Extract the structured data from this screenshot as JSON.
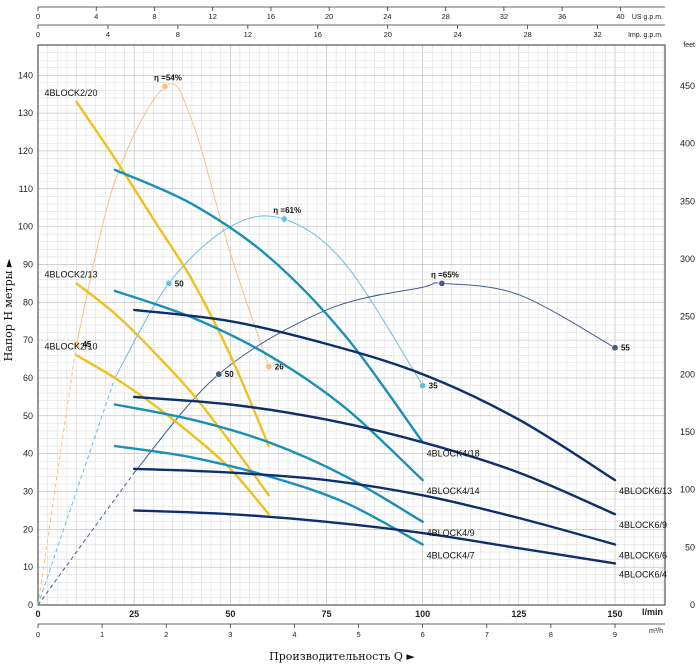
{
  "chart_data": {
    "type": "line",
    "xlabel": "Производительность Q ►",
    "ylabel": "Напор H метры ►",
    "x_unit": "l/min",
    "xlim": [
      0,
      163
    ],
    "ylim": [
      0,
      148
    ],
    "x_ticks": [
      0,
      25,
      50,
      75,
      100,
      125,
      150
    ],
    "y_ticks": [
      0,
      10,
      20,
      30,
      40,
      50,
      60,
      70,
      80,
      90,
      100,
      110,
      120,
      130,
      140
    ],
    "grid": true,
    "secondary_axes": {
      "top_us": {
        "label": "US g.p.m.",
        "ticks": [
          0,
          4,
          8,
          12,
          16,
          20,
          24,
          28,
          32,
          36,
          40
        ],
        "factor": 3.785
      },
      "top_imp": {
        "label": "Imp. g.p.m.",
        "ticks": [
          0,
          4,
          8,
          12,
          16,
          20,
          24,
          28,
          32
        ],
        "factor": 4.546
      },
      "bottom_m3h": {
        "label": "m³/h",
        "ticks": [
          0,
          1,
          2,
          3,
          4,
          5,
          6,
          7,
          8,
          9
        ],
        "factor": 16.667
      },
      "right_feet": {
        "label": "feet",
        "ticks": [
          0,
          50,
          100,
          150,
          200,
          250,
          300,
          350,
          400,
          450
        ],
        "factor": 0.3048
      }
    },
    "series": [
      {
        "name": "4BLOCK2/20",
        "group": "2",
        "label_side": "left",
        "x": [
          10,
          20,
          30,
          40,
          50,
          60
        ],
        "y": [
          133,
          118,
          102,
          86,
          66,
          42
        ]
      },
      {
        "name": "4BLOCK2/13",
        "group": "2",
        "label_side": "left",
        "x": [
          10,
          20,
          30,
          40,
          50,
          60
        ],
        "y": [
          85,
          77,
          67,
          56,
          43,
          29
        ]
      },
      {
        "name": "4BLOCK2/10",
        "group": "2",
        "label_side": "left",
        "x": [
          10,
          20,
          30,
          40,
          50,
          60
        ],
        "y": [
          66,
          60,
          53,
          45,
          36,
          24
        ]
      },
      {
        "name": "4BLOCK4/18",
        "group": "4",
        "label_side": "right",
        "x": [
          20,
          40,
          60,
          80,
          100
        ],
        "y": [
          115,
          106,
          92,
          71,
          43
        ]
      },
      {
        "name": "4BLOCK4/14",
        "group": "4",
        "label_side": "right",
        "x": [
          20,
          40,
          60,
          80,
          100
        ],
        "y": [
          83,
          76,
          66,
          52,
          33
        ]
      },
      {
        "name": "4BLOCK4/9",
        "group": "4",
        "label_side": "right",
        "x": [
          20,
          40,
          60,
          80,
          100
        ],
        "y": [
          53,
          49,
          43,
          34,
          22
        ]
      },
      {
        "name": "4BLOCK4/7",
        "group": "4",
        "label_side": "right",
        "x": [
          20,
          40,
          60,
          80,
          100
        ],
        "y": [
          42,
          39,
          34,
          27,
          16
        ]
      },
      {
        "name": "4BLOCK6/13",
        "group": "6",
        "label_side": "right",
        "x": [
          25,
          50,
          75,
          100,
          125,
          150
        ],
        "y": [
          78,
          75,
          69,
          61,
          49,
          33
        ]
      },
      {
        "name": "4BLOCK6/9",
        "group": "6",
        "label_side": "right",
        "x": [
          25,
          50,
          75,
          100,
          125,
          150
        ],
        "y": [
          55,
          53,
          49,
          43,
          35,
          24
        ]
      },
      {
        "name": "4BLOCK6/6",
        "group": "6",
        "label_side": "right",
        "x": [
          25,
          50,
          75,
          100,
          125,
          150
        ],
        "y": [
          36,
          35,
          33,
          29,
          23,
          16
        ]
      },
      {
        "name": "4BLOCK6/4",
        "group": "6",
        "label_side": "right",
        "x": [
          25,
          50,
          75,
          100,
          125,
          150
        ],
        "y": [
          25,
          24,
          22,
          19,
          15,
          11
        ]
      }
    ],
    "efficiency_curves": [
      {
        "label": "η =54%",
        "group": "2",
        "x": [
          0,
          10,
          20,
          33,
          40,
          50,
          60
        ],
        "y": [
          0,
          69,
          112,
          137,
          128,
          93,
          63
        ],
        "dashed_until": 10,
        "markers": [
          {
            "x": 10,
            "y": 69,
            "text": "45"
          },
          {
            "x": 33,
            "y": 137,
            "text": ""
          },
          {
            "x": 60,
            "y": 63,
            "text": "26"
          }
        ]
      },
      {
        "label": "η =61%",
        "group": "4",
        "x": [
          0,
          20,
          34,
          50,
          64,
          80,
          100
        ],
        "y": [
          0,
          60,
          85,
          100,
          102,
          90,
          58
        ],
        "dashed_until": 20,
        "markers": [
          {
            "x": 34,
            "y": 85,
            "text": "50"
          },
          {
            "x": 64,
            "y": 102,
            "text": ""
          },
          {
            "x": 100,
            "y": 58,
            "text": "35"
          }
        ]
      },
      {
        "label": "η =65%",
        "group": "6",
        "x": [
          0,
          25,
          47,
          75,
          100,
          105,
          125,
          150
        ],
        "y": [
          0,
          35,
          61,
          78,
          84,
          85,
          82,
          68
        ],
        "dashed_until": 25,
        "markers": [
          {
            "x": 47,
            "y": 61,
            "text": "50"
          },
          {
            "x": 105,
            "y": 85,
            "text": ""
          },
          {
            "x": 150,
            "y": 68,
            "text": "55"
          }
        ]
      }
    ],
    "colors": {
      "group2": "#f0c020",
      "group4": "#1a8fb8",
      "group6": "#0d2f6e",
      "eff2": "#f3c08a",
      "eff4": "#6bbde0",
      "eff6": "#3d5f8e"
    }
  }
}
